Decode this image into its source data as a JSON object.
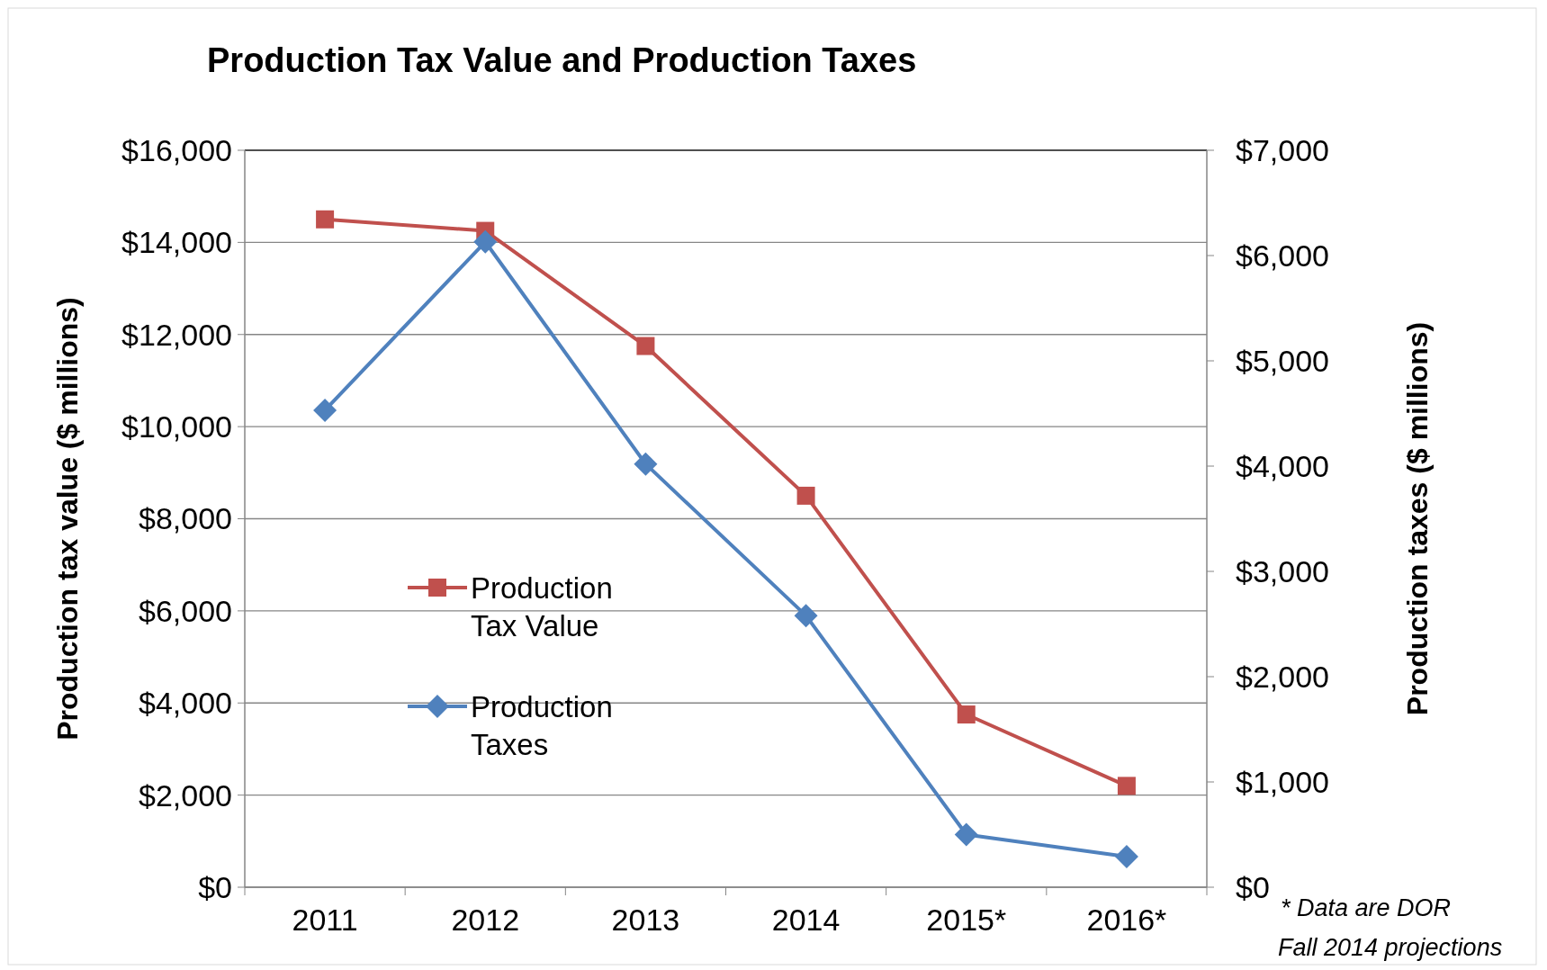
{
  "chart_data": {
    "type": "line",
    "title": "Production Tax Value and  Production Taxes",
    "ylabel": "Production tax value ($ millions)",
    "y2label": "Production taxes ($ millions)",
    "categories": [
      "2011",
      "2012",
      "2013",
      "2014",
      "2015*",
      "2016*"
    ],
    "series": [
      {
        "name": "Production Tax Value",
        "color": "#c0504d",
        "marker": "square",
        "values": [
          14500,
          14250,
          11750,
          8500,
          3750,
          2200
        ]
      },
      {
        "name": "Production Taxes",
        "color": "#4f81bd",
        "marker": "diamond",
        "axis": "y2",
        "values": [
          4530,
          6130,
          4020,
          2580,
          500,
          290
        ]
      }
    ],
    "ylim": [
      0,
      16000
    ],
    "yticks": [
      {
        "value": 0,
        "label": "$0"
      },
      {
        "value": 2000,
        "label": "$2,000"
      },
      {
        "value": 4000,
        "label": "$4,000"
      },
      {
        "value": 6000,
        "label": "$6,000"
      },
      {
        "value": 8000,
        "label": "$8,000"
      },
      {
        "value": 10000,
        "label": "$10,000"
      },
      {
        "value": 12000,
        "label": "$12,000"
      },
      {
        "value": 14000,
        "label": "$14,000"
      },
      {
        "value": 16000,
        "label": "$16,000"
      }
    ],
    "y2lim": [
      0,
      7000
    ],
    "y2ticks": [
      {
        "value": 0,
        "label": "$0"
      },
      {
        "value": 1000,
        "label": "$1,000"
      },
      {
        "value": 2000,
        "label": "$2,000"
      },
      {
        "value": 3000,
        "label": "$3,000"
      },
      {
        "value": 4000,
        "label": "$4,000"
      },
      {
        "value": 5000,
        "label": "$5,000"
      },
      {
        "value": 6000,
        "label": "$6,000"
      },
      {
        "value": 7000,
        "label": "$7,000"
      }
    ],
    "grid": "y",
    "legend": "left",
    "annotations": [
      "* Data are DOR\nFall 2014 projections"
    ]
  }
}
